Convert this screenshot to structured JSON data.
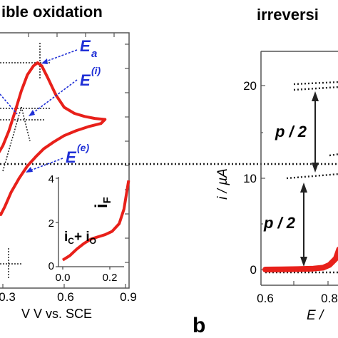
{
  "chart_data": [
    {
      "panel": "a",
      "type": "line",
      "title_fragment": "ible oxidation",
      "xlabel_fragment": "V vs. SCE",
      "x_ticks": [
        "0.3",
        "0.6",
        "0.9"
      ],
      "xlim": [
        0.27,
        0.9
      ],
      "series": [
        {
          "name": "",
          "color": "#e8201a",
          "x": [
            0.27,
            0.3,
            0.33,
            0.36,
            0.39,
            0.42,
            0.45,
            0.47,
            0.49,
            0.52,
            0.56,
            0.6,
            0.65,
            0.7,
            0.75,
            0.8,
            0.78,
            0.72,
            0.66,
            0.6,
            0.55,
            0.5,
            0.46,
            0.42,
            0.38,
            0.34,
            0.31,
            0.29,
            0.27
          ],
          "y": [
            0.08,
            0.18,
            0.33,
            0.52,
            0.72,
            0.88,
            0.97,
            1.0,
            0.97,
            0.85,
            0.68,
            0.56,
            0.5,
            0.47,
            0.45,
            0.44,
            0.4,
            0.37,
            0.33,
            0.28,
            0.22,
            0.15,
            0.07,
            -0.02,
            -0.14,
            -0.28,
            -0.42,
            -0.5,
            -0.46
          ]
        }
      ],
      "annotations": {
        "Ea": "E",
        "Ea_sub": "a",
        "Ei": "E",
        "Ei_sup": "(i)",
        "Ee": "E",
        "Ee_sup": "(e)"
      },
      "inset": {
        "x_ticks": [
          "0.0",
          "0.2"
        ],
        "y_ticks": [
          "0",
          "2",
          "4"
        ],
        "label_if": "i",
        "label_if_sub": "F",
        "label_ic_io": "i",
        "label_ic_sub": "C",
        "label_plus": "+ i",
        "label_io_sub": "O",
        "x": [
          0.0,
          0.03,
          0.06,
          0.09,
          0.12,
          0.15,
          0.18,
          0.21,
          0.24,
          0.26,
          0.28
        ],
        "y": [
          0.3,
          0.5,
          0.8,
          1.05,
          1.25,
          1.35,
          1.45,
          1.6,
          1.95,
          2.6,
          3.9
        ],
        "xlim": [
          -0.02,
          0.33
        ],
        "ylim": [
          0,
          4
        ]
      }
    },
    {
      "panel": "b",
      "type": "line",
      "panel_label": "b",
      "title_fragment": "irreversi",
      "ylabel": "i  /  µA",
      "xlabel_fragment": "E /",
      "y_ticks": [
        "0",
        "10",
        "20"
      ],
      "x_ticks": [
        "0.6",
        "0.8"
      ],
      "ylim": [
        -1,
        24
      ],
      "annotations": {
        "p2_top": "p / 2",
        "p2_bottom": "p / 2"
      },
      "series": [
        {
          "name": "",
          "color": "#e8201a",
          "x": [
            0.6,
            0.65,
            0.7,
            0.75,
            0.78,
            0.8,
            0.82,
            0.83
          ],
          "y": [
            0.0,
            0.02,
            0.05,
            0.1,
            0.2,
            0.5,
            1.2,
            2.2
          ]
        }
      ]
    }
  ]
}
